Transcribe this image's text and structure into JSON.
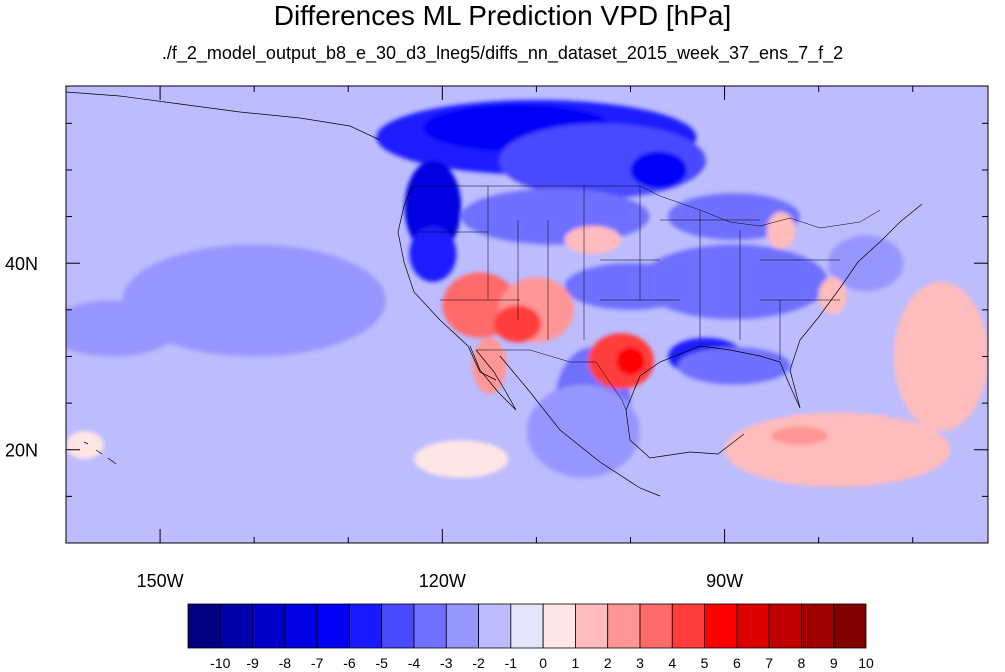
{
  "chart_data": {
    "type": "heatmap",
    "title": "Differences ML Prediction VPD [hPa]",
    "subtitle": "./f_2_model_output_b8_e_30_d3_lneg5/diffs_nn_dataset_2015_week_37_ens_7_f_2",
    "xlim": [
      -160,
      -62
    ],
    "ylim": [
      10,
      59
    ],
    "x_ticks": [
      {
        "value": -150,
        "label": "150W"
      },
      {
        "value": -120,
        "label": "120W"
      },
      {
        "value": -90,
        "label": "90W"
      }
    ],
    "y_ticks": [
      {
        "value": 20,
        "label": "20N"
      },
      {
        "value": 40,
        "label": "40N"
      }
    ],
    "colorbar": {
      "labels": [
        "-10",
        "-9",
        "-8",
        "-7",
        "-6",
        "-5",
        "-4",
        "-3",
        "-2",
        "-1",
        "0",
        "1",
        "2",
        "3",
        "4",
        "5",
        "6",
        "7",
        "8",
        "9",
        "10"
      ],
      "colors": [
        "#000080",
        "#0000a6",
        "#0000c8",
        "#0000e0",
        "#0000f6",
        "#1a1aff",
        "#4a4aff",
        "#7070ff",
        "#9696ff",
        "#bcbcff",
        "#e4e4fa",
        "#ffe6e6",
        "#ffbcbc",
        "#ff9696",
        "#ff6a6a",
        "#ff3c3c",
        "#ff0000",
        "#dd0000",
        "#c00000",
        "#a00000",
        "#800000"
      ]
    },
    "background_value": -1,
    "regions": [
      {
        "lon": -110,
        "lat": 53.5,
        "rx": 17,
        "ry": 4,
        "value": -5
      },
      {
        "lon": -112,
        "lat": 54.5,
        "rx": 10,
        "ry": 2.5,
        "value": -6
      },
      {
        "lon": -103,
        "lat": 51,
        "rx": 11,
        "ry": 4,
        "value": -4
      },
      {
        "lon": -97,
        "lat": 50,
        "rx": 3,
        "ry": 2,
        "value": -6
      },
      {
        "lon": -121,
        "lat": 46,
        "rx": 3,
        "ry": 5,
        "value": -7
      },
      {
        "lon": -121,
        "lat": 41,
        "rx": 2.5,
        "ry": 3,
        "value": -5
      },
      {
        "lon": -108,
        "lat": 45,
        "rx": 10,
        "ry": 3,
        "value": -3
      },
      {
        "lon": -89,
        "lat": 45,
        "rx": 7,
        "ry": 2.5,
        "value": -3
      },
      {
        "lon": -89,
        "lat": 38,
        "rx": 10,
        "ry": 4,
        "value": -3
      },
      {
        "lon": -100,
        "lat": 37.5,
        "rx": 7,
        "ry": 2.5,
        "value": -3
      },
      {
        "lon": -92,
        "lat": 30,
        "rx": 4,
        "ry": 2,
        "value": -5
      },
      {
        "lon": -89,
        "lat": 29,
        "rx": 6,
        "ry": 2,
        "value": -3
      },
      {
        "lon": -104,
        "lat": 25,
        "rx": 4,
        "ry": 6,
        "value": -3
      },
      {
        "lon": -105,
        "lat": 22,
        "rx": 2,
        "ry": 3,
        "value": -5
      },
      {
        "lon": -75,
        "lat": 40,
        "rx": 4,
        "ry": 3,
        "value": -2
      },
      {
        "lon": -155,
        "lat": 33,
        "rx": 7,
        "ry": 3,
        "value": -2
      },
      {
        "lon": -140,
        "lat": 36,
        "rx": 14,
        "ry": 6,
        "value": -2
      },
      {
        "lon": -105,
        "lat": 22,
        "rx": 6,
        "ry": 5,
        "value": -2
      },
      {
        "lon": -116,
        "lat": 35.5,
        "rx": 4,
        "ry": 3.5,
        "value": 4
      },
      {
        "lon": -110,
        "lat": 35,
        "rx": 4,
        "ry": 3.5,
        "value": 3
      },
      {
        "lon": -112,
        "lat": 33.5,
        "rx": 2.5,
        "ry": 2,
        "value": 5
      },
      {
        "lon": -115,
        "lat": 29,
        "rx": 1.8,
        "ry": 3,
        "value": 3
      },
      {
        "lon": -101,
        "lat": 29.5,
        "rx": 3.5,
        "ry": 3,
        "value": 5
      },
      {
        "lon": -100,
        "lat": 29.5,
        "rx": 1.5,
        "ry": 1.5,
        "value": 6
      },
      {
        "lon": -104,
        "lat": 42.5,
        "rx": 3,
        "ry": 1.5,
        "value": 2
      },
      {
        "lon": -84,
        "lat": 43.5,
        "rx": 1.5,
        "ry": 2,
        "value": 2
      },
      {
        "lon": -78.5,
        "lat": 36.5,
        "rx": 1.5,
        "ry": 2,
        "value": 2
      },
      {
        "lon": -67,
        "lat": 30,
        "rx": 5,
        "ry": 8,
        "value": 2
      },
      {
        "lon": -78,
        "lat": 20,
        "rx": 12,
        "ry": 4,
        "value": 2
      },
      {
        "lon": -82,
        "lat": 21.5,
        "rx": 3,
        "ry": 1,
        "value": 3
      },
      {
        "lon": -118,
        "lat": 19,
        "rx": 5,
        "ry": 2,
        "value": 1
      },
      {
        "lon": -158,
        "lat": 20.5,
        "rx": 2,
        "ry": 1.5,
        "value": 1
      }
    ]
  }
}
